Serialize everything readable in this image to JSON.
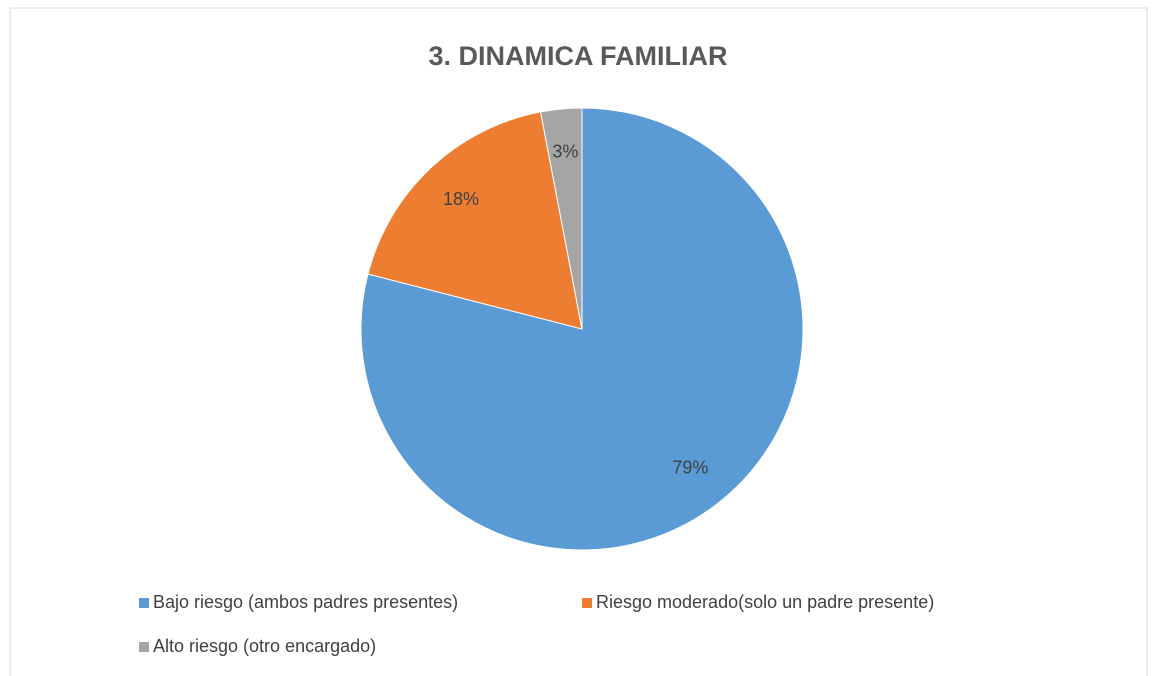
{
  "chart_data": {
    "type": "pie",
    "title": "3. DINAMICA FAMILIAR",
    "categories": [
      "Bajo riesgo (ambos padres presentes)",
      "Riesgo moderado(solo un padre presente)",
      "Alto riesgo (otro encargado)"
    ],
    "values": [
      79,
      18,
      3
    ],
    "value_labels": [
      "79%",
      "18%",
      "3%"
    ],
    "colors": [
      "#5b9bd5",
      "#ed7d31",
      "#a5a5a5"
    ],
    "legend": "bottom"
  }
}
